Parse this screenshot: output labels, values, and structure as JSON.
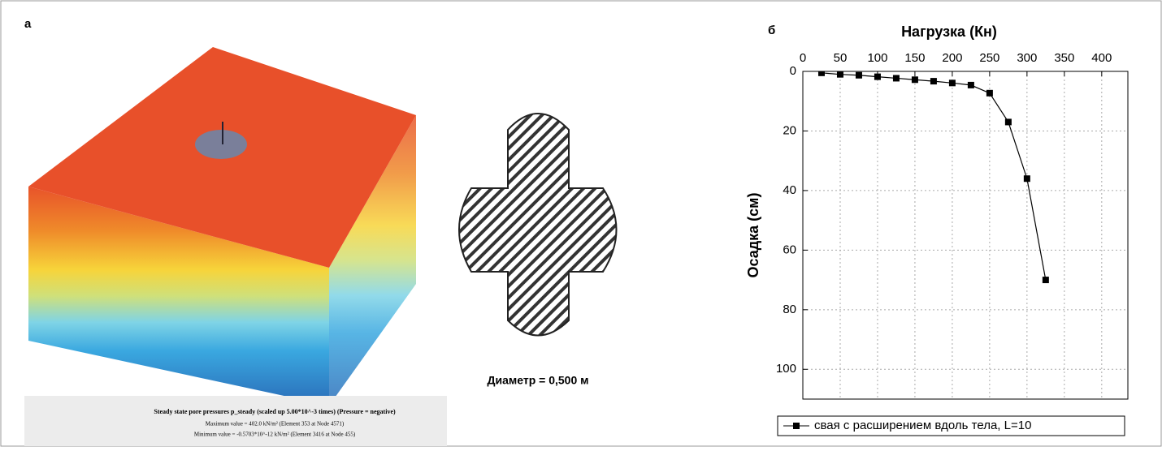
{
  "panel_a": {
    "label": "а",
    "caption": [
      "Steady state pore pressures p_steady (scaled up 5.00*10^-3 times) (Pressure = negative)",
      "Maximum value = 402.0 kN/m² (Element 353 at Node 4571)",
      "Minimum value = -0.5703*10^-12 kN/m² (Element 3416 at Node 455)"
    ]
  },
  "diameter_label": "Диаметр = 0,500 м",
  "chart_data": {
    "type": "line",
    "panel_label": "б",
    "x_label": "Нагрузка (Кн)",
    "y_label": "Осадка (см)",
    "xlim": [
      0,
      435
    ],
    "xticks": [
      0,
      50,
      100,
      150,
      200,
      250,
      300,
      350,
      400
    ],
    "ylim": [
      0,
      110
    ],
    "yticks": [
      0,
      20,
      40,
      60,
      80,
      100
    ],
    "y_inverted": true,
    "grid": true,
    "legend_position": "bottom",
    "series": [
      {
        "name": "свая с расширением вдоль тела, L=10",
        "color": "#000000",
        "x": [
          25,
          50,
          75,
          100,
          125,
          150,
          175,
          200,
          225,
          250,
          275,
          300,
          325
        ],
        "values": [
          0.5,
          1,
          1.3,
          1.8,
          2.3,
          2.8,
          3.3,
          3.9,
          4.6,
          7.3,
          17,
          36,
          70
        ]
      }
    ]
  }
}
